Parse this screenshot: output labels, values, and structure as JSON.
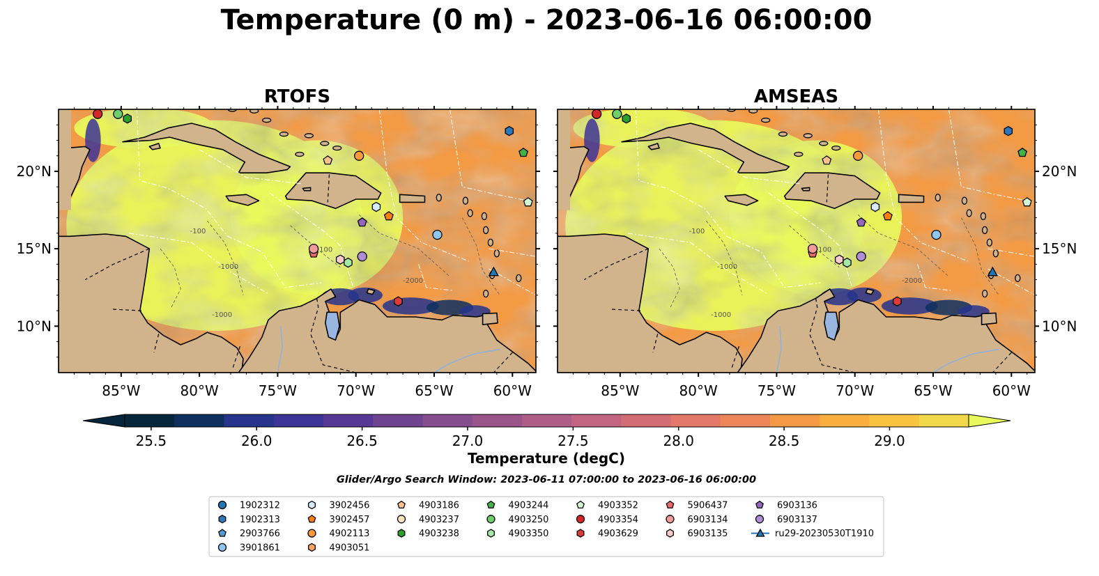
{
  "figure": {
    "suptitle": "Temperature (0 m) - 2023-06-16 06:00:00",
    "search_window": "Glider/Argo Search Window: 2023-06-11 07:00:00 to 2023-06-16 06:00:00"
  },
  "colors": {
    "land": "#d2b48c",
    "ocean_nodata": "#98b6e0",
    "warm_base": "#f39a45",
    "hot": "#ead94f",
    "cool": "#6b3c8a"
  },
  "chart_data": [
    {
      "type": "heatmap",
      "title": "RTOFS",
      "xlim": [
        -89,
        -58.5
      ],
      "ylim": [
        7,
        24
      ],
      "x_ticks": [
        "85°W",
        "80°W",
        "75°W",
        "70°W",
        "65°W",
        "60°W"
      ],
      "y_ticks": [
        "10°N",
        "15°N",
        "20°N"
      ],
      "y_tick_side": "left",
      "contour_labels": [
        "-100",
        "-1000",
        "-2000"
      ],
      "pacific_shown": false
    },
    {
      "type": "heatmap",
      "title": "AMSEAS",
      "xlim": [
        -89,
        -58.5
      ],
      "ylim": [
        7,
        24
      ],
      "x_ticks": [
        "85°W",
        "80°W",
        "75°W",
        "70°W",
        "65°W",
        "60°W"
      ],
      "y_ticks": [
        "10°N",
        "15°N",
        "20°N"
      ],
      "y_tick_side": "right",
      "contour_labels": [
        "-100",
        "-1000",
        "-2000"
      ],
      "pacific_shown": true
    }
  ],
  "colorbar": {
    "label": "Temperature (degC)",
    "vmin": 25.375,
    "vmax": 29.375,
    "ticks": [
      "25.5",
      "26.0",
      "26.5",
      "27.0",
      "27.5",
      "28.0",
      "28.5",
      "29.0"
    ],
    "tick_values": [
      25.5,
      26.0,
      26.5,
      27.0,
      27.5,
      28.0,
      28.5,
      29.0
    ],
    "colors": [
      "#04253a",
      "#0f2f5e",
      "#26348c",
      "#3d3498",
      "#573895",
      "#6e4390",
      "#844d8c",
      "#99558a",
      "#ae5d87",
      "#c26582",
      "#d36d74",
      "#e17868",
      "#ec8658",
      "#f49a47",
      "#f9ae3e",
      "#f8c33f",
      "#f1d84a"
    ],
    "under_color": "#04253a",
    "over_color": "#e8fa5b",
    "extend": "both"
  },
  "floats": [
    {
      "id": "1902312",
      "marker": "circle",
      "color": "#1f77b4",
      "lon": null,
      "lat": null
    },
    {
      "id": "1902313",
      "marker": "hexagon",
      "color": "#2d78bd",
      "lon": -60.2,
      "lat": 22.6
    },
    {
      "id": "2903766",
      "marker": "pentagon",
      "color": "#4f9ad3",
      "lon": null,
      "lat": null
    },
    {
      "id": "3901861",
      "marker": "circle",
      "color": "#90c5ef",
      "lon": -64.8,
      "lat": 15.9
    },
    {
      "id": "3902456",
      "marker": "hexagon",
      "color": "#d6ecfb",
      "lon": -68.7,
      "lat": 17.7
    },
    {
      "id": "3902457",
      "marker": "pentagon",
      "color": "#ff7f0e",
      "lon": -67.9,
      "lat": 17.1
    },
    {
      "id": "4902113",
      "marker": "circle",
      "color": "#ff9a3c",
      "lon": -69.8,
      "lat": 21.0
    },
    {
      "id": "4903051",
      "marker": "hexagon",
      "color": "#ffa45c",
      "lon": null,
      "lat": null
    },
    {
      "id": "4903186",
      "marker": "pentagon",
      "color": "#ffc28a",
      "lon": -71.8,
      "lat": 20.7
    },
    {
      "id": "4903237",
      "marker": "circle",
      "color": "#ffe0bf",
      "lon": null,
      "lat": null
    },
    {
      "id": "4903238",
      "marker": "hexagon",
      "color": "#2ca02c",
      "lon": -84.6,
      "lat": 23.4
    },
    {
      "id": "4903244",
      "marker": "pentagon",
      "color": "#45b045",
      "lon": -59.3,
      "lat": 21.2
    },
    {
      "id": "4903250",
      "marker": "circle",
      "color": "#6ccf6c",
      "lon": -85.2,
      "lat": 23.7
    },
    {
      "id": "4903350",
      "marker": "hexagon",
      "color": "#a6e8a6",
      "lon": -70.5,
      "lat": 14.1
    },
    {
      "id": "4903352",
      "marker": "pentagon",
      "color": "#d4f7d4",
      "lon": -59.0,
      "lat": 18.0
    },
    {
      "id": "4903354",
      "marker": "circle",
      "color": "#d62728",
      "lon": -86.5,
      "lat": 23.7
    },
    {
      "id": "4903629",
      "marker": "hexagon",
      "color": "#e03a3b",
      "lon": -67.3,
      "lat": 11.6
    },
    {
      "id": "5906437",
      "marker": "pentagon",
      "color": "#ea6a6b",
      "lon": -72.7,
      "lat": 14.7
    },
    {
      "id": "6903134",
      "marker": "circle",
      "color": "#f29a9b",
      "lon": -72.7,
      "lat": 15.0
    },
    {
      "id": "6903135",
      "marker": "hexagon",
      "color": "#fbcaca",
      "lon": -71.0,
      "lat": 14.3
    },
    {
      "id": "6903136",
      "marker": "pentagon",
      "color": "#9467bd",
      "lon": -69.6,
      "lat": 16.7
    },
    {
      "id": "6903137",
      "marker": "circle",
      "color": "#b08ed6",
      "lon": -69.6,
      "lat": 14.5
    },
    {
      "id": "ru29-20230530T1910",
      "marker": "triangle-line",
      "color": "#1f77b4",
      "lon": -61.2,
      "lat": 13.5
    }
  ],
  "legend": {
    "columns": [
      [
        "1902312",
        "1902313",
        "2903766",
        "3901861"
      ],
      [
        "3902456",
        "3902457",
        "4902113",
        "4903051"
      ],
      [
        "4903186",
        "4903237",
        "4903238"
      ],
      [
        "4903244",
        "4903250",
        "4903350"
      ],
      [
        "4903352",
        "4903354",
        "4903629"
      ],
      [
        "5906437",
        "6903134",
        "6903135"
      ],
      [
        "6903136",
        "6903137",
        "ru29-20230530T1910"
      ]
    ]
  }
}
